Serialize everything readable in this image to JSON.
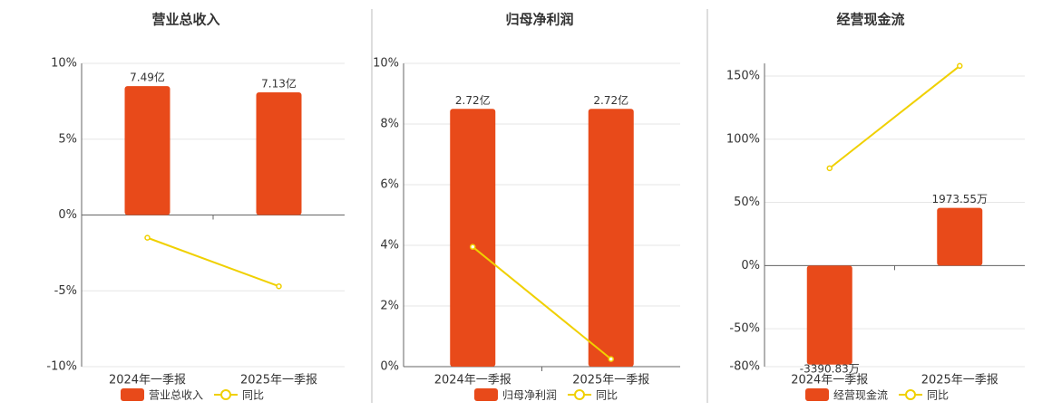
{
  "chart_data": [
    {
      "type": "bar",
      "title": "营业总收入",
      "categories": [
        "2024年一季报",
        "2025年一季报"
      ],
      "series": [
        {
          "name": "营业总收入",
          "color": "#e84a1a",
          "values": [
            7.49,
            7.13
          ],
          "value_labels": [
            "7.49亿",
            "7.13亿"
          ]
        },
        {
          "name": "同比",
          "type": "line",
          "color": "#f0d000",
          "values": [
            -1.5,
            -4.7
          ]
        }
      ],
      "ylim": [
        -10,
        10
      ],
      "yticks": [
        {
          "value": -10,
          "label": "-10%"
        },
        {
          "value": -5,
          "label": "-5%"
        },
        {
          "value": 0,
          "label": "0%"
        },
        {
          "value": 5,
          "label": "5%"
        },
        {
          "value": 10,
          "label": "10%"
        }
      ],
      "grid": true
    },
    {
      "type": "bar",
      "title": "归母净利润",
      "categories": [
        "2024年一季报",
        "2025年一季报"
      ],
      "series": [
        {
          "name": "归母净利润",
          "color": "#e84a1a",
          "values": [
            2.72,
            2.72
          ],
          "value_labels": [
            "2.72亿",
            "2.72亿"
          ]
        },
        {
          "name": "同比",
          "type": "line",
          "color": "#f0d000",
          "values": [
            3.95,
            0.25
          ]
        }
      ],
      "ylim": [
        0,
        10
      ],
      "yticks": [
        {
          "value": 0,
          "label": "0%"
        },
        {
          "value": 2,
          "label": "2%"
        },
        {
          "value": 4,
          "label": "4%"
        },
        {
          "value": 6,
          "label": "6%"
        },
        {
          "value": 8,
          "label": "8%"
        },
        {
          "value": 10,
          "label": "10%"
        }
      ],
      "grid": true
    },
    {
      "type": "bar",
      "title": "经营现金流",
      "categories": [
        "2024年一季报",
        "2025年一季报"
      ],
      "series": [
        {
          "name": "经营现金流",
          "color": "#e84a1a",
          "values": [
            -3390.83,
            1973.55
          ],
          "value_labels": [
            "-3390.83万",
            "1973.55万"
          ]
        },
        {
          "name": "同比",
          "type": "line",
          "color": "#f0d000",
          "values": [
            77,
            158
          ]
        }
      ],
      "ylim": [
        -80,
        160
      ],
      "yticks": [
        {
          "value": -80,
          "label": "-80%"
        },
        {
          "value": -50,
          "label": "-50%"
        },
        {
          "value": 0,
          "label": "0%"
        },
        {
          "value": 50,
          "label": "50%"
        },
        {
          "value": 100,
          "label": "100%"
        },
        {
          "value": 150,
          "label": "150%"
        }
      ],
      "grid": true
    }
  ]
}
